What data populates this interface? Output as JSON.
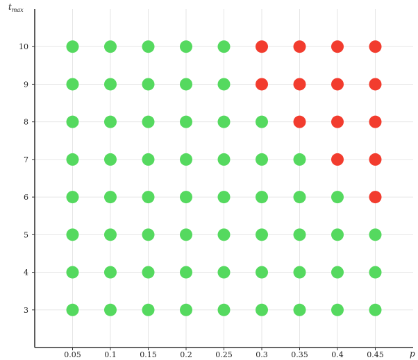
{
  "chart_data": {
    "type": "scatter",
    "title": "",
    "xlabel": "p",
    "ylabel": {
      "main": "t",
      "sub": "max"
    },
    "x_ticks": [
      0.05,
      0.1,
      0.15,
      0.2,
      0.25,
      0.3,
      0.35,
      0.4,
      0.45
    ],
    "x_tick_labels": [
      "0.05",
      "0.1",
      "0.15",
      "0.2",
      "0.25",
      "0.3",
      "0.35",
      "0.4",
      "0.45"
    ],
    "y_ticks": [
      3,
      4,
      5,
      6,
      7,
      8,
      9,
      10
    ],
    "y_tick_labels": [
      "3",
      "4",
      "5",
      "6",
      "7",
      "8",
      "9",
      "10"
    ],
    "xlim": [
      0,
      0.5
    ],
    "ylim": [
      2,
      11
    ],
    "grid": true,
    "legend": "none",
    "colors": {
      "green": "#55d95f",
      "red": "#f23c2e"
    },
    "series": [
      {
        "color": "green",
        "points": [
          [
            0.05,
            3
          ],
          [
            0.1,
            3
          ],
          [
            0.15,
            3
          ],
          [
            0.2,
            3
          ],
          [
            0.25,
            3
          ],
          [
            0.3,
            3
          ],
          [
            0.35,
            3
          ],
          [
            0.4,
            3
          ],
          [
            0.45,
            3
          ],
          [
            0.05,
            4
          ],
          [
            0.1,
            4
          ],
          [
            0.15,
            4
          ],
          [
            0.2,
            4
          ],
          [
            0.25,
            4
          ],
          [
            0.3,
            4
          ],
          [
            0.35,
            4
          ],
          [
            0.4,
            4
          ],
          [
            0.45,
            4
          ],
          [
            0.05,
            5
          ],
          [
            0.1,
            5
          ],
          [
            0.15,
            5
          ],
          [
            0.2,
            5
          ],
          [
            0.25,
            5
          ],
          [
            0.3,
            5
          ],
          [
            0.35,
            5
          ],
          [
            0.4,
            5
          ],
          [
            0.45,
            5
          ],
          [
            0.05,
            6
          ],
          [
            0.1,
            6
          ],
          [
            0.15,
            6
          ],
          [
            0.2,
            6
          ],
          [
            0.25,
            6
          ],
          [
            0.3,
            6
          ],
          [
            0.35,
            6
          ],
          [
            0.4,
            6
          ],
          [
            0.05,
            7
          ],
          [
            0.1,
            7
          ],
          [
            0.15,
            7
          ],
          [
            0.2,
            7
          ],
          [
            0.25,
            7
          ],
          [
            0.3,
            7
          ],
          [
            0.35,
            7
          ],
          [
            0.05,
            8
          ],
          [
            0.1,
            8
          ],
          [
            0.15,
            8
          ],
          [
            0.2,
            8
          ],
          [
            0.25,
            8
          ],
          [
            0.3,
            8
          ],
          [
            0.05,
            9
          ],
          [
            0.1,
            9
          ],
          [
            0.15,
            9
          ],
          [
            0.2,
            9
          ],
          [
            0.25,
            9
          ],
          [
            0.05,
            10
          ],
          [
            0.1,
            10
          ],
          [
            0.15,
            10
          ],
          [
            0.2,
            10
          ],
          [
            0.25,
            10
          ]
        ]
      },
      {
        "color": "red",
        "points": [
          [
            0.45,
            6
          ],
          [
            0.4,
            7
          ],
          [
            0.45,
            7
          ],
          [
            0.35,
            8
          ],
          [
            0.4,
            8
          ],
          [
            0.45,
            8
          ],
          [
            0.3,
            9
          ],
          [
            0.35,
            9
          ],
          [
            0.4,
            9
          ],
          [
            0.45,
            9
          ],
          [
            0.3,
            10
          ],
          [
            0.35,
            10
          ],
          [
            0.4,
            10
          ],
          [
            0.45,
            10
          ]
        ]
      }
    ]
  }
}
